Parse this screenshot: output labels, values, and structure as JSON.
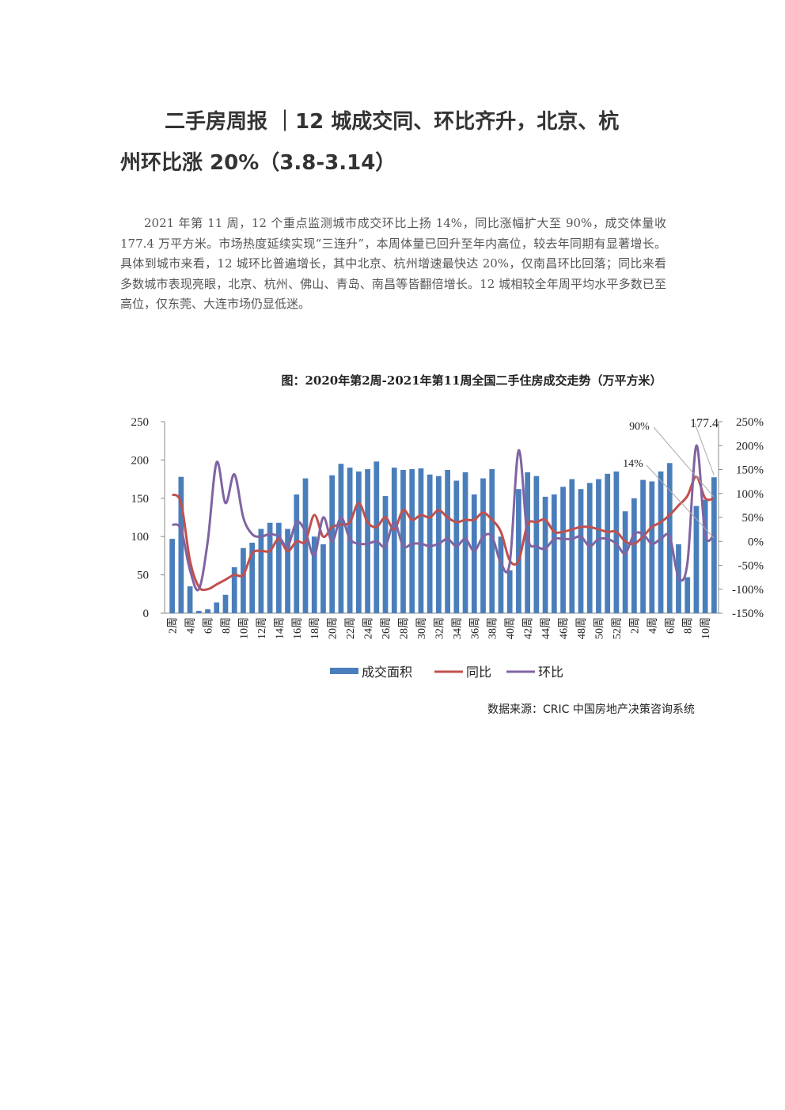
{
  "header": {
    "title_lines": [
      "二手房周报 ｜12 城成交同、环比齐升，北京、杭",
      "州环比涨 20%（3.8-3.14）"
    ]
  },
  "body": {
    "paragraph": "2021 年第 11 周，12 个重点监测城市成交环比上扬 14%，同比涨幅扩大至 90%，成交体量收 177.4 万平方米。市场热度延续实现“三连升”，本周体量已回升至年内高位，较去年同期有显著增长。具体到城市来看，12 城环比普遍增长，其中北京、杭州增速最快达 20%，仅南昌环比回落；同比来看多数城市表现亮眼，北京、杭州、佛山、青岛、南昌等皆翻倍增长。12 城相较全年周平均水平多数已至高位，仅东莞、大连市场仍显低迷。"
  },
  "chart_data": {
    "type": "bar_line",
    "title": "图：2020年第2周-2021年第11周全国二手住房成交走势（万平方米）",
    "categories": [
      "2周",
      null,
      "4周",
      null,
      "6周",
      null,
      "8周",
      null,
      "10周",
      null,
      "12周",
      null,
      "14周",
      null,
      "16周",
      null,
      "18周",
      null,
      "20周",
      null,
      "22周",
      null,
      "24周",
      null,
      "26周",
      null,
      "28周",
      null,
      "30周",
      null,
      "32周",
      null,
      "34周",
      null,
      "36周",
      null,
      "38周",
      null,
      "40周",
      null,
      "42周",
      null,
      "44周",
      null,
      "46周",
      null,
      "48周",
      null,
      "50周",
      null,
      "52周",
      null,
      "2周",
      null,
      "4周",
      null,
      "6周",
      null,
      "8周",
      null,
      "10周",
      null
    ],
    "series": [
      {
        "name": "成交面积",
        "kind": "bar",
        "color": "#4a7ebb",
        "values": [
          97,
          178,
          35,
          3,
          5,
          14,
          24,
          60,
          85,
          92,
          110,
          118,
          118,
          110,
          155,
          176,
          100,
          90,
          180,
          195,
          190,
          185,
          188,
          198,
          153,
          190,
          187,
          188,
          189,
          181,
          179,
          187,
          173,
          184,
          155,
          176,
          188,
          100,
          56,
          162,
          184,
          179,
          152,
          155,
          165,
          175,
          162,
          170,
          175,
          182,
          185,
          133,
          150,
          174,
          172,
          185,
          196,
          90,
          47,
          140,
          148,
          177.4
        ]
      },
      {
        "name": "同比",
        "kind": "line",
        "axis": "y2",
        "color": "#c0504d",
        "values": [
          98,
          80,
          -40,
          -95,
          -100,
          -90,
          -80,
          -70,
          -70,
          -25,
          -20,
          -20,
          5,
          -20,
          0,
          0,
          55,
          10,
          30,
          35,
          40,
          80,
          40,
          30,
          50,
          25,
          65,
          45,
          55,
          50,
          65,
          50,
          40,
          45,
          45,
          60,
          45,
          20,
          -40,
          -40,
          35,
          40,
          45,
          20,
          20,
          25,
          30,
          30,
          25,
          20,
          20,
          0,
          -5,
          10,
          30,
          40,
          55,
          75,
          95,
          135,
          90,
          90
        ]
      },
      {
        "name": "环比",
        "kind": "line",
        "axis": "y2",
        "color": "#8064a2",
        "values": [
          35,
          25,
          -60,
          -100,
          0,
          165,
          80,
          140,
          50,
          15,
          10,
          15,
          10,
          -10,
          40,
          20,
          -30,
          50,
          0,
          50,
          5,
          -5,
          -5,
          0,
          -10,
          40,
          -10,
          -5,
          -5,
          -10,
          -5,
          5,
          -10,
          5,
          -20,
          10,
          10,
          -45,
          -45,
          190,
          10,
          -10,
          -15,
          5,
          5,
          5,
          10,
          -10,
          5,
          5,
          -5,
          -25,
          15,
          15,
          -5,
          5,
          10,
          -75,
          -45,
          200,
          15,
          14
        ]
      }
    ],
    "ylim": [
      0,
      250
    ],
    "yticks": [
      0,
      50,
      100,
      150,
      200,
      250
    ],
    "y2lim": [
      -150,
      250
    ],
    "y2ticks": [
      {
        "value": -150,
        "label": "-150%"
      },
      {
        "value": -100,
        "label": "-100%"
      },
      {
        "value": -50,
        "label": "-50%"
      },
      {
        "value": 0,
        "label": "0%"
      },
      {
        "value": 50,
        "label": "50%"
      },
      {
        "value": 100,
        "label": "100%"
      },
      {
        "value": 150,
        "label": "150%"
      },
      {
        "value": 200,
        "label": "200%"
      },
      {
        "value": 250,
        "label": "250%"
      }
    ],
    "annotations": [
      "90%",
      "14%",
      "177.4"
    ],
    "legend": "bottom",
    "source": "数据来源：CRIC 中国房地产决策咨询系统"
  }
}
